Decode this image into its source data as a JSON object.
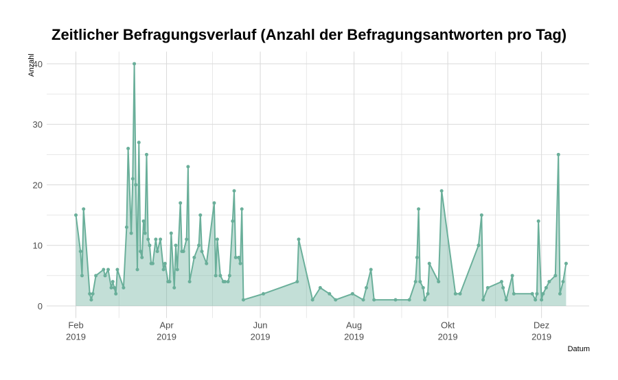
{
  "chart_data": {
    "type": "area-line",
    "title": "Zeitlicher Befragungsverlauf (Anzahl der Befragungsantworten pro Tag)",
    "y_label": "Anzahl",
    "x_label": "Datum",
    "color": "#6aaf9a",
    "grid": true,
    "xlim": [
      "2019-01-13",
      "2020-01-01"
    ],
    "ylim": [
      -2,
      42
    ],
    "xticks": [
      {
        "value": "2019-02-01",
        "label": [
          "Feb",
          "2019"
        ]
      },
      {
        "value": "2019-04-01",
        "label": [
          "Apr",
          "2019"
        ]
      },
      {
        "value": "2019-06-01",
        "label": [
          "Jun",
          "2019"
        ]
      },
      {
        "value": "2019-08-01",
        "label": [
          "Aug",
          "2019"
        ]
      },
      {
        "value": "2019-10-01",
        "label": [
          "Okt",
          "2019"
        ]
      },
      {
        "value": "2019-12-01",
        "label": [
          "Dez",
          "2019"
        ]
      }
    ],
    "xminor": [
      "2019-03-01",
      "2019-05-01",
      "2019-07-01",
      "2019-09-01",
      "2019-11-01"
    ],
    "yticks": [
      0,
      10,
      20,
      30,
      40
    ],
    "yminor": [
      5,
      15,
      25,
      35
    ],
    "x": [
      "2019-02-01",
      "2019-02-04",
      "2019-02-05",
      "2019-02-06",
      "2019-02-10",
      "2019-02-11",
      "2019-02-12",
      "2019-02-14",
      "2019-02-19",
      "2019-02-20",
      "2019-02-22",
      "2019-02-24",
      "2019-02-25",
      "2019-02-26",
      "2019-02-27",
      "2019-02-28",
      "2019-03-04",
      "2019-03-06",
      "2019-03-07",
      "2019-03-09",
      "2019-03-10",
      "2019-03-11",
      "2019-03-12",
      "2019-03-13",
      "2019-03-14",
      "2019-03-15",
      "2019-03-16",
      "2019-03-17",
      "2019-03-18",
      "2019-03-19",
      "2019-03-20",
      "2019-03-21",
      "2019-03-22",
      "2019-03-23",
      "2019-03-25",
      "2019-03-26",
      "2019-03-28",
      "2019-03-30",
      "2019-03-31",
      "2019-04-02",
      "2019-04-03",
      "2019-04-04",
      "2019-04-06",
      "2019-04-07",
      "2019-04-08",
      "2019-04-10",
      "2019-04-11",
      "2019-04-12",
      "2019-04-14",
      "2019-04-15",
      "2019-04-16",
      "2019-04-19",
      "2019-04-22",
      "2019-04-23",
      "2019-04-24",
      "2019-04-27",
      "2019-05-02",
      "2019-05-03",
      "2019-05-04",
      "2019-05-06",
      "2019-05-08",
      "2019-05-09",
      "2019-05-11",
      "2019-05-12",
      "2019-05-14",
      "2019-05-15",
      "2019-05-16",
      "2019-05-18",
      "2019-05-19",
      "2019-05-20",
      "2019-05-21",
      "2019-06-03",
      "2019-06-25",
      "2019-06-26",
      "2019-07-05",
      "2019-07-10",
      "2019-07-16",
      "2019-07-20",
      "2019-07-31",
      "2019-08-07",
      "2019-08-09",
      "2019-08-12",
      "2019-08-14",
      "2019-08-28",
      "2019-09-06",
      "2019-09-10",
      "2019-09-11",
      "2019-09-12",
      "2019-09-13",
      "2019-09-15",
      "2019-09-16",
      "2019-09-18",
      "2019-09-19",
      "2019-09-25",
      "2019-09-27",
      "2019-10-06",
      "2019-10-09",
      "2019-10-21",
      "2019-10-23",
      "2019-10-24",
      "2019-10-27",
      "2019-11-05",
      "2019-11-06",
      "2019-11-08",
      "2019-11-12",
      "2019-11-13",
      "2019-11-25",
      "2019-11-27",
      "2019-11-28",
      "2019-11-29",
      "2019-12-01",
      "2019-12-02",
      "2019-12-04",
      "2019-12-06",
      "2019-12-10",
      "2019-12-12",
      "2019-12-13",
      "2019-12-15",
      "2019-12-17"
    ],
    "values": [
      15,
      9,
      5,
      16,
      2,
      1,
      2,
      5,
      6,
      5,
      6,
      3,
      4,
      3,
      2,
      6,
      3,
      13,
      26,
      12,
      21,
      40,
      20,
      6,
      27,
      9,
      8,
      14,
      12,
      25,
      11,
      10,
      7,
      7,
      11,
      9,
      11,
      6,
      7,
      4,
      4,
      12,
      3,
      10,
      6,
      17,
      9,
      9,
      11,
      23,
      4,
      8,
      10,
      15,
      9,
      7,
      17,
      5,
      11,
      5,
      4,
      4,
      4,
      5,
      14,
      19,
      8,
      8,
      7,
      16,
      1,
      2,
      4,
      11,
      1,
      3,
      2,
      1,
      2,
      1,
      3,
      6,
      1,
      1,
      1,
      4,
      8,
      16,
      4,
      3,
      1,
      2,
      7,
      4,
      19,
      2,
      2,
      10,
      15,
      1,
      3,
      4,
      3,
      1,
      5,
      2,
      2,
      1,
      2,
      14,
      1,
      2,
      3,
      4,
      5,
      25,
      2,
      4,
      7
    ]
  }
}
